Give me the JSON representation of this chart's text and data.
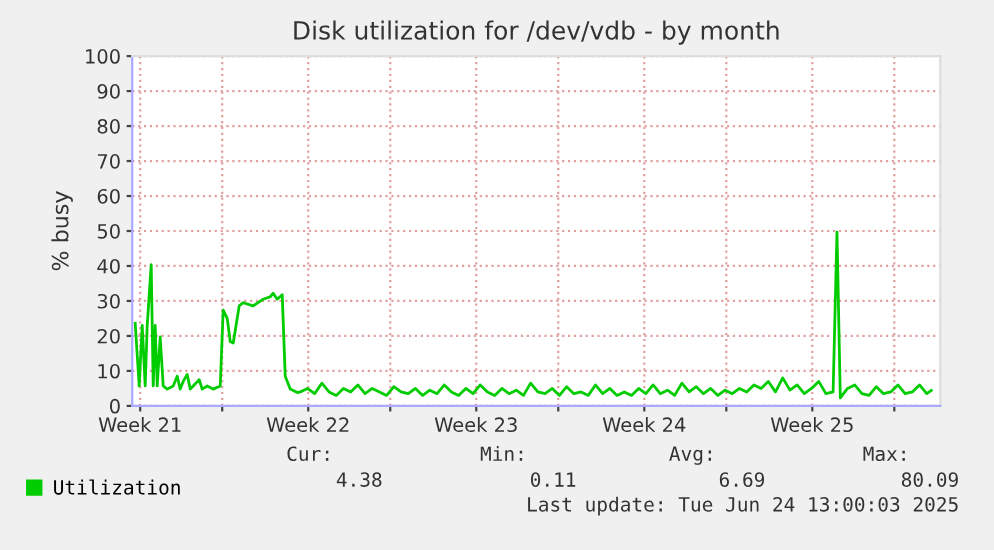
{
  "chart_data": {
    "type": "line",
    "title": "Disk utilization for /dev/vdb - by month",
    "ylabel": "% busy",
    "x": [
      "2025-05-22T09:00",
      "2025-05-22T13:00",
      "2025-05-22T16:00",
      "2025-05-22T19:00",
      "2025-05-22T21:00",
      "2025-05-23T01:00",
      "2025-05-23T03:00",
      "2025-05-23T05:00",
      "2025-05-23T07:00",
      "2025-05-23T10:00",
      "2025-05-23T13:00",
      "2025-05-23T17:00",
      "2025-05-23T23:00",
      "2025-05-24T03:00",
      "2025-05-24T06:00",
      "2025-05-24T09:00",
      "2025-05-24T13:00",
      "2025-05-24T16:00",
      "2025-05-24T19:00",
      "2025-05-25T01:00",
      "2025-05-25T04:00",
      "2025-05-25T09:00",
      "2025-05-25T15:00",
      "2025-05-25T22:00",
      "2025-05-26T01:00",
      "2025-05-26T05:00",
      "2025-05-26T08:00",
      "2025-05-26T11:00",
      "2025-05-26T17:00",
      "2025-05-26T21:00",
      "2025-05-27T07:00",
      "2025-05-27T17:00",
      "2025-05-28T00:00",
      "2025-05-28T03:00",
      "2025-05-28T07:00",
      "2025-05-28T12:00",
      "2025-05-28T15:00",
      "2025-05-28T20:00",
      "2025-05-29T03:00",
      "2025-05-29T06:00",
      "2025-05-29T13:12",
      "2025-05-29T20:24",
      "2025-05-30T03:36",
      "2025-05-30T10:48",
      "2025-05-30T18:00",
      "2025-05-31T01:12",
      "2025-05-31T08:24",
      "2025-05-31T15:36",
      "2025-05-31T22:48",
      "2025-06-01T06:00",
      "2025-06-01T13:12",
      "2025-06-01T20:24",
      "2025-06-02T03:36",
      "2025-06-02T10:48",
      "2025-06-02T18:00",
      "2025-06-03T01:12",
      "2025-06-03T08:24",
      "2025-06-03T15:36",
      "2025-06-03T22:48",
      "2025-06-04T06:00",
      "2025-06-04T13:12",
      "2025-06-04T20:24",
      "2025-06-05T03:36",
      "2025-06-05T10:48",
      "2025-06-05T18:00",
      "2025-06-06T01:12",
      "2025-06-06T08:24",
      "2025-06-06T15:36",
      "2025-06-06T22:48",
      "2025-06-07T06:00",
      "2025-06-07T13:12",
      "2025-06-07T20:24",
      "2025-06-08T03:36",
      "2025-06-08T10:48",
      "2025-06-08T18:00",
      "2025-06-09T01:12",
      "2025-06-09T08:24",
      "2025-06-09T15:36",
      "2025-06-09T22:48",
      "2025-06-10T06:00",
      "2025-06-10T13:12",
      "2025-06-10T20:24",
      "2025-06-11T03:36",
      "2025-06-11T10:48",
      "2025-06-11T18:00",
      "2025-06-12T01:12",
      "2025-06-12T08:24",
      "2025-06-12T15:36",
      "2025-06-12T22:48",
      "2025-06-13T06:00",
      "2025-06-13T13:12",
      "2025-06-13T20:24",
      "2025-06-14T03:36",
      "2025-06-14T10:48",
      "2025-06-14T18:00",
      "2025-06-15T01:12",
      "2025-06-15T08:24",
      "2025-06-15T15:36",
      "2025-06-15T22:48",
      "2025-06-16T06:00",
      "2025-06-16T13:12",
      "2025-06-16T20:24",
      "2025-06-17T03:36",
      "2025-06-17T10:48",
      "2025-06-17T18:00",
      "2025-06-18T01:12",
      "2025-06-18T08:24",
      "2025-06-18T15:36",
      "2025-06-18T22:48",
      "2025-06-19T06:00",
      "2025-06-19T13:12",
      "2025-06-19T20:24",
      "2025-06-20T03:36",
      "2025-06-20T10:48",
      "2025-06-20T14:40",
      "2025-06-20T18:00",
      "2025-06-21T01:12",
      "2025-06-21T08:24",
      "2025-06-21T15:36",
      "2025-06-21T22:48",
      "2025-06-22T06:00",
      "2025-06-22T13:12",
      "2025-06-22T20:24",
      "2025-06-23T03:36",
      "2025-06-23T10:48",
      "2025-06-23T18:00",
      "2025-06-24T01:12",
      "2025-06-24T08:24",
      "2025-06-24T13:00"
    ],
    "series": [
      {
        "name": "Utilization",
        "color": "#00cc00",
        "values": [
          23.6,
          5.7,
          23,
          5.7,
          23,
          40.4,
          5.7,
          23,
          5.7,
          19.7,
          5.7,
          4.8,
          5.7,
          8.5,
          4.8,
          7,
          9,
          4.8,
          5.7,
          7.5,
          4.8,
          5.7,
          4.8,
          5.7,
          27.4,
          25,
          18.4,
          18,
          28.6,
          29.5,
          28.6,
          30.5,
          31.2,
          32.2,
          30.5,
          31.8,
          8.5,
          4.8,
          3.8,
          4,
          5,
          3.5,
          6.5,
          4,
          3,
          5,
          4,
          6,
          3.5,
          5,
          4,
          3,
          5.5,
          4,
          3.5,
          5,
          3,
          4.5,
          3.5,
          6,
          4,
          3,
          5,
          3.5,
          6,
          4,
          3,
          5,
          3.5,
          4.5,
          3,
          6.5,
          4,
          3.5,
          5,
          3,
          5.5,
          3.5,
          4,
          3,
          6,
          3.5,
          5,
          3,
          4,
          3,
          5,
          3.5,
          6,
          3.5,
          4.5,
          3,
          6.5,
          4,
          5.5,
          3.5,
          5,
          3,
          4.5,
          3.5,
          5,
          4,
          6,
          5,
          7,
          4,
          8,
          4.5,
          6,
          3.5,
          5,
          7,
          3.5,
          4,
          49.7,
          2.3,
          5,
          6,
          3.5,
          3,
          5.5,
          3.5,
          4,
          6,
          3.5,
          4,
          6,
          3.5,
          4.4
        ]
      }
    ],
    "xlim": [
      "2025-05-22T06:00",
      "2025-06-24T22:00"
    ],
    "xticks": [
      {
        "value": "2025-05-22T14:00",
        "label": "Week 21"
      },
      {
        "value": "2025-05-26",
        "label": null
      },
      {
        "value": "2025-05-29T14:00",
        "label": "Week 22"
      },
      {
        "value": "2025-06-02",
        "label": null
      },
      {
        "value": "2025-06-05T14:00",
        "label": "Week 23"
      },
      {
        "value": "2025-06-09",
        "label": null
      },
      {
        "value": "2025-06-12T14:00",
        "label": "Week 24"
      },
      {
        "value": "2025-06-16",
        "label": null
      },
      {
        "value": "2025-06-19T14:00",
        "label": "Week 25"
      },
      {
        "value": "2025-06-23",
        "label": null
      }
    ],
    "ylim": [
      0,
      100
    ],
    "yticks": [
      0,
      10,
      20,
      30,
      40,
      50,
      60,
      70,
      80,
      90,
      100
    ],
    "grid": true,
    "legend": "bottom left",
    "marker": "none",
    "line_style": "solid",
    "annotations": [
      "Cur:",
      "Min:",
      "Avg:",
      "Max:",
      "4.38",
      "0.11",
      "6.69",
      "80.09",
      "Last update: Tue Jun 24 13:00:03 2025"
    ]
  }
}
